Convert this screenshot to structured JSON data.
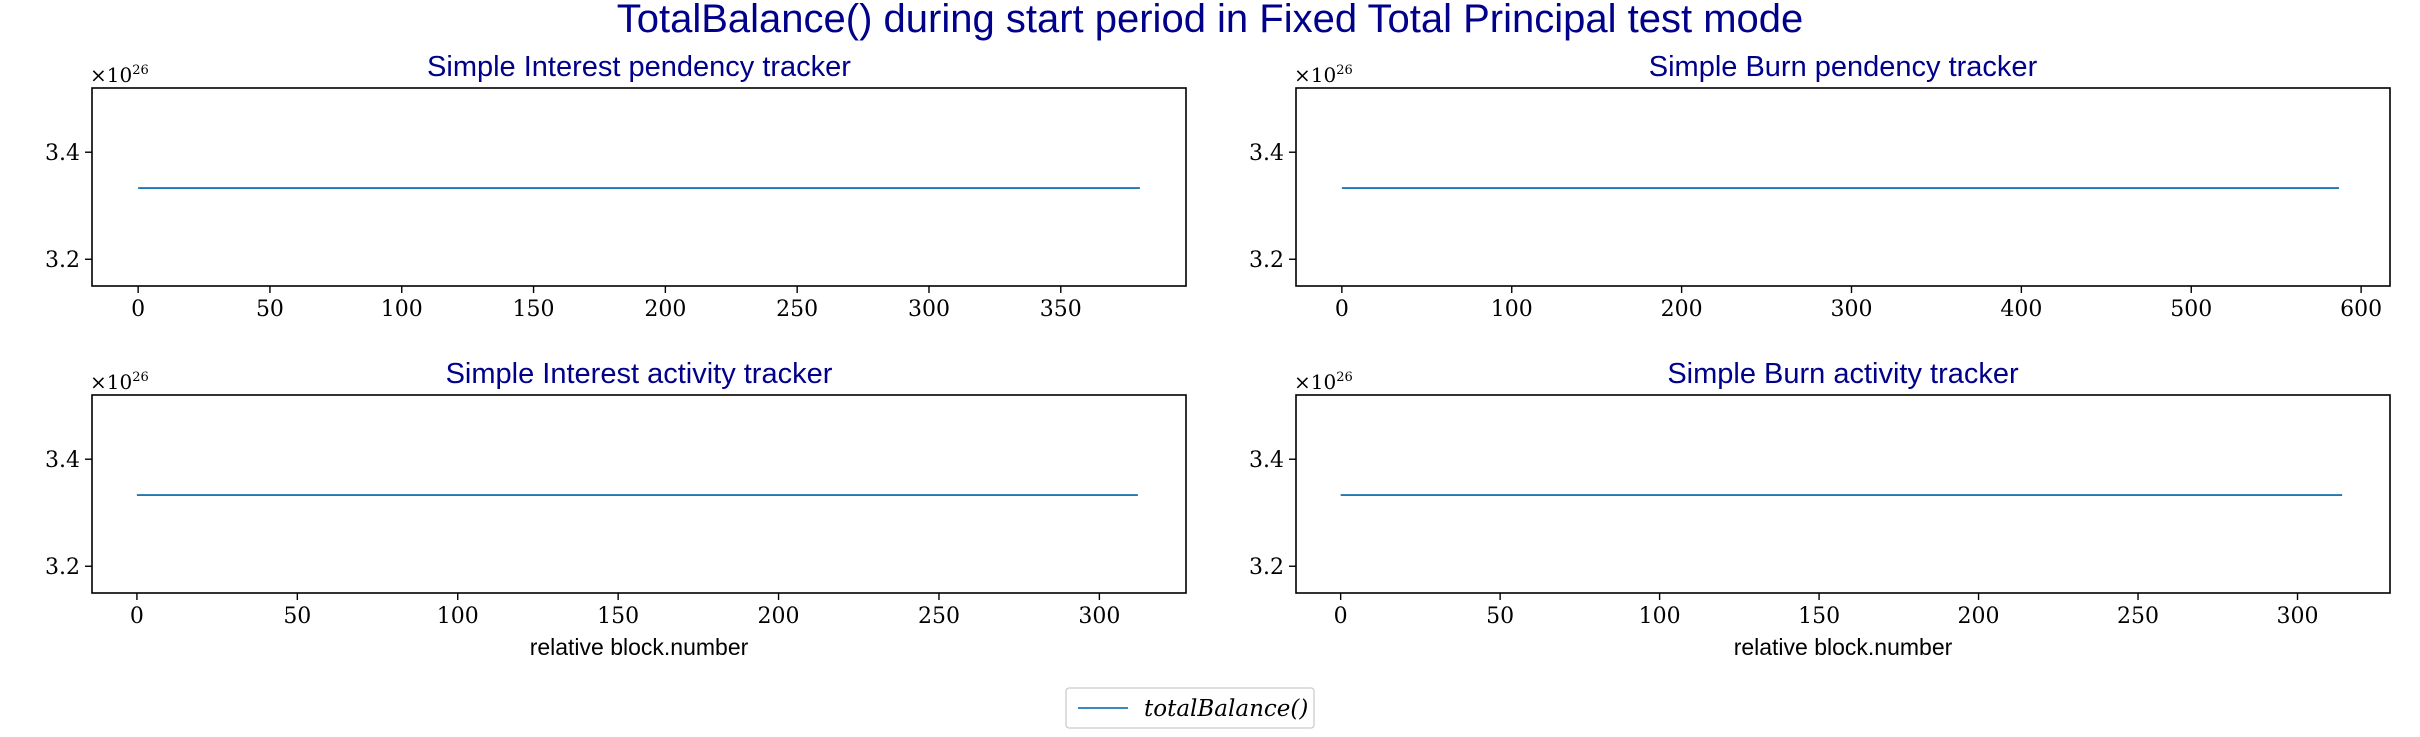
{
  "figure": {
    "suptitle": "TotalBalance() during start period in Fixed Total Principal test mode",
    "title_color": "#00008b",
    "line_color": "#1f77b4",
    "legend": {
      "label": "totalBalance()",
      "placement": "bottom-center"
    }
  },
  "chart_data": [
    {
      "type": "line",
      "title": "Simple Interest pendency tracker",
      "xlabel": "",
      "ylabel": "",
      "y_multiplier": "×10",
      "y_exponent": "26",
      "xlim": [
        -17.5,
        397.5
      ],
      "ylim": [
        3.15,
        3.52
      ],
      "xticks": [
        0,
        50,
        100,
        150,
        200,
        250,
        300,
        350
      ],
      "yticks": [
        3.2,
        3.4
      ],
      "series": [
        {
          "name": "totalBalance()",
          "x": [
            0,
            380
          ],
          "y": [
            3.333,
            3.333
          ]
        }
      ],
      "grid": false
    },
    {
      "type": "line",
      "title": "Simple Burn pendency tracker",
      "xlabel": "",
      "ylabel": "",
      "y_multiplier": "×10",
      "y_exponent": "26",
      "xlim": [
        -27,
        617
      ],
      "ylim": [
        3.15,
        3.52
      ],
      "xticks": [
        0,
        100,
        200,
        300,
        400,
        500,
        600
      ],
      "yticks": [
        3.2,
        3.4
      ],
      "series": [
        {
          "name": "totalBalance()",
          "x": [
            0,
            587
          ],
          "y": [
            3.333,
            3.333
          ]
        }
      ],
      "grid": false
    },
    {
      "type": "line",
      "title": "Simple Interest activity tracker",
      "xlabel": "relative block.number",
      "ylabel": "",
      "y_multiplier": "×10",
      "y_exponent": "26",
      "xlim": [
        -14,
        327
      ],
      "ylim": [
        3.15,
        3.52
      ],
      "xticks": [
        0,
        50,
        100,
        150,
        200,
        250,
        300
      ],
      "yticks": [
        3.2,
        3.4
      ],
      "series": [
        {
          "name": "totalBalance()",
          "x": [
            0,
            312
          ],
          "y": [
            3.333,
            3.333
          ]
        }
      ],
      "grid": false
    },
    {
      "type": "line",
      "title": "Simple Burn activity tracker",
      "xlabel": "relative block.number",
      "ylabel": "",
      "y_multiplier": "×10",
      "y_exponent": "26",
      "xlim": [
        -14,
        329
      ],
      "ylim": [
        3.15,
        3.52
      ],
      "xticks": [
        0,
        50,
        100,
        150,
        200,
        250,
        300
      ],
      "yticks": [
        3.2,
        3.4
      ],
      "series": [
        {
          "name": "totalBalance()",
          "x": [
            0,
            314
          ],
          "y": [
            3.333,
            3.333
          ]
        }
      ],
      "grid": false
    }
  ]
}
